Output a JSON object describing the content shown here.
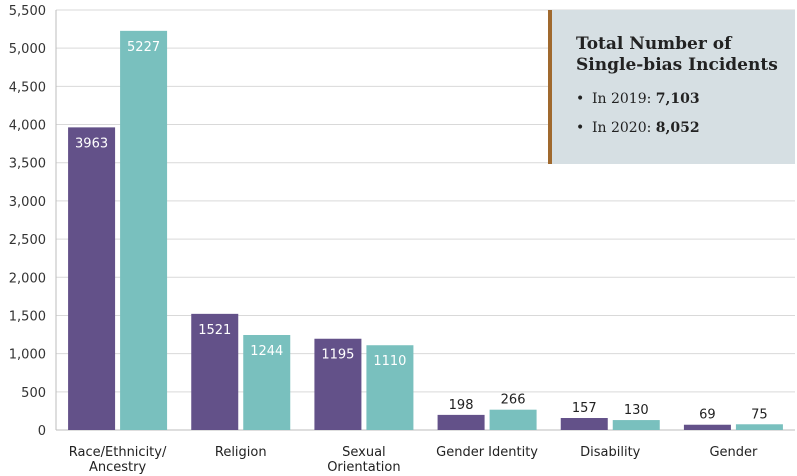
{
  "chart_data": {
    "type": "bar",
    "categories": [
      [
        "Race/Ethnicity/",
        "Ancestry"
      ],
      [
        "Religion"
      ],
      [
        "Sexual",
        "Orientation"
      ],
      [
        "Gender Identity"
      ],
      [
        "Disability"
      ],
      [
        "Gender"
      ]
    ],
    "series": [
      {
        "values": [
          3963,
          1521,
          1195,
          198,
          157,
          69
        ],
        "color": "#635189"
      },
      {
        "values": [
          5227,
          1244,
          1110,
          266,
          130,
          75
        ],
        "color": "#79c0be"
      }
    ],
    "ylim": [
      0,
      5500
    ],
    "ytick_step": 500,
    "yticks": [
      "0",
      "500",
      "1,000",
      "1,500",
      "2,000",
      "2,500",
      "3,000",
      "3,500",
      "4,000",
      "4,500",
      "5,000",
      "5,500"
    ],
    "grid": true,
    "title": "",
    "xlabel": "",
    "ylabel": ""
  },
  "info_box": {
    "title_line1": "Total Number of",
    "title_line2": "Single-bias Incidents",
    "items": [
      {
        "bullet": "•",
        "label": "In 2019: ",
        "value": "7,103"
      },
      {
        "bullet": "•",
        "label": "In 2020: ",
        "value": "8,052"
      }
    ]
  }
}
